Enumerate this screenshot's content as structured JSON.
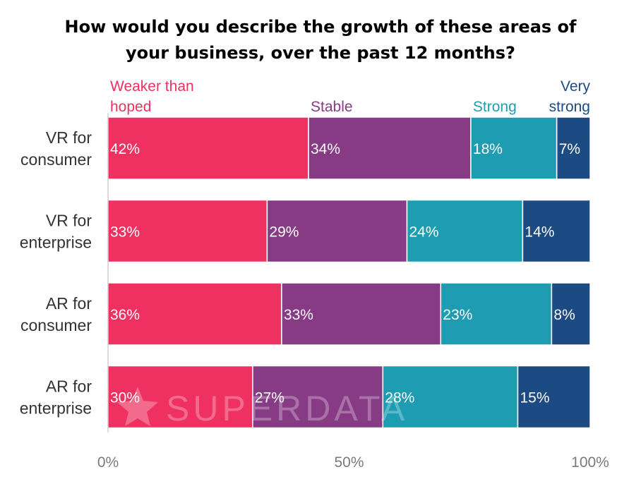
{
  "chart_data": {
    "type": "bar",
    "orientation": "horizontal",
    "stacked": true,
    "title_lines": [
      "How would you describe the growth of these areas of",
      "your business, over the past 12 months?"
    ],
    "categories": [
      [
        "VR for",
        "consumer"
      ],
      [
        "VR for",
        "enterprise"
      ],
      [
        "AR for",
        "consumer"
      ],
      [
        "AR for",
        "enterprise"
      ]
    ],
    "series": [
      {
        "name": [
          "Weaker than",
          "hoped"
        ],
        "color": "#ee3160",
        "values": [
          42,
          33,
          36,
          30
        ]
      },
      {
        "name": [
          "Stable"
        ],
        "color": "#873b85",
        "values": [
          34,
          29,
          33,
          27
        ]
      },
      {
        "name": [
          "Strong"
        ],
        "color": "#1e9db2",
        "values": [
          18,
          24,
          23,
          28
        ]
      },
      {
        "name": [
          "Very",
          "strong"
        ],
        "color": "#1c4a83",
        "values": [
          7,
          14,
          8,
          15
        ]
      }
    ],
    "value_suffix": "%",
    "xlim": [
      0,
      100
    ],
    "xticks": [
      "0%",
      "50%",
      "100%"
    ],
    "legend_placement": "top",
    "grid": false,
    "watermark": "SUPERDATA"
  }
}
